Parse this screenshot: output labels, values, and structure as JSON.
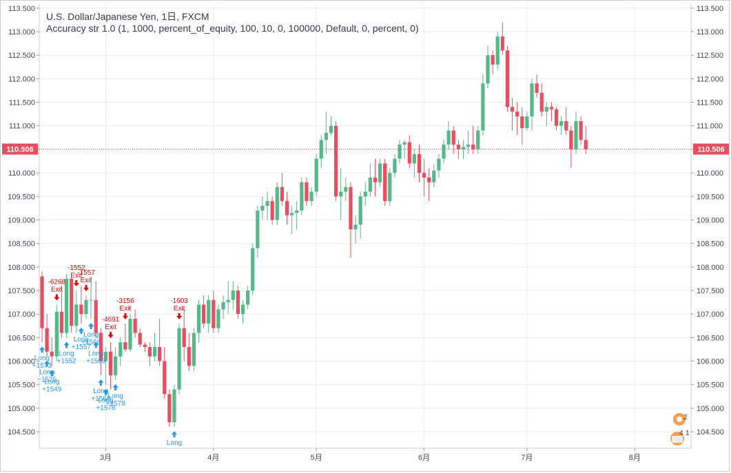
{
  "legend": {
    "title": "U.S. Dollar/Japanese Yen, 1日, FXCM",
    "study": "Accuracy str 1.0 (1, 1000, percent_of_equity, 100, 10, 0, 100000, Default, 0, percent, 0)"
  },
  "colors": {
    "up": "#53b987",
    "down": "#eb4d5c",
    "price_line": "#eb4d5c",
    "long_signal": "#2196f3",
    "exit_signal": "#f00000",
    "grid": "#e9ecf2"
  },
  "chart_data": {
    "type": "candlestick",
    "title": "U.S. Dollar/Japanese Yen, 1日, FXCM",
    "ylim": [
      104.15,
      113.6
    ],
    "yticks": [
      "113.500",
      "113.000",
      "112.500",
      "112.000",
      "111.500",
      "111.000",
      "110.500",
      "110.000",
      "109.500",
      "109.000",
      "108.500",
      "108.000",
      "107.500",
      "107.000",
      "106.500",
      "106.000",
      "105.500",
      "105.000",
      "104.500"
    ],
    "xticks": [
      {
        "label": "3月",
        "i": 13
      },
      {
        "label": "4月",
        "i": 35
      },
      {
        "label": "5月",
        "i": 56
      },
      {
        "label": "6月",
        "i": 78
      },
      {
        "label": "7月",
        "i": 99
      },
      {
        "label": "8月",
        "i": 121
      }
    ],
    "last_price": 110.506,
    "last_price_label": "110.506",
    "ohlc": [
      [
        107.8,
        107.9,
        106.4,
        106.7
      ],
      [
        106.7,
        107.0,
        106.1,
        106.2
      ],
      [
        106.2,
        106.5,
        105.9,
        106.1
      ],
      [
        106.1,
        107.2,
        106.0,
        107.05
      ],
      [
        107.05,
        107.6,
        106.5,
        106.6
      ],
      [
        106.6,
        107.85,
        106.5,
        107.75
      ],
      [
        107.75,
        107.8,
        106.6,
        106.75
      ],
      [
        106.75,
        107.5,
        106.6,
        107.2
      ],
      [
        107.2,
        107.6,
        106.8,
        107.0
      ],
      [
        107.0,
        107.4,
        106.9,
        107.3
      ],
      [
        107.3,
        107.8,
        106.9,
        107.3
      ],
      [
        107.3,
        107.7,
        106.5,
        106.6
      ],
      [
        106.6,
        106.7,
        105.7,
        106.0
      ],
      [
        106.0,
        106.3,
        105.5,
        106.2
      ],
      [
        106.2,
        106.4,
        105.4,
        105.7
      ],
      [
        105.7,
        106.3,
        105.6,
        106.1
      ],
      [
        106.1,
        106.5,
        105.9,
        106.4
      ],
      [
        106.4,
        106.8,
        106.2,
        106.25
      ],
      [
        106.25,
        107.0,
        106.2,
        106.9
      ],
      [
        106.9,
        107.1,
        106.5,
        106.6
      ],
      [
        106.6,
        106.7,
        106.3,
        106.35
      ],
      [
        106.35,
        106.4,
        106.2,
        106.3
      ],
      [
        106.3,
        106.4,
        105.9,
        106.1
      ],
      [
        106.1,
        106.6,
        106.0,
        106.3
      ],
      [
        106.3,
        106.9,
        105.9,
        106.0
      ],
      [
        106.0,
        106.3,
        105.2,
        105.3
      ],
      [
        105.3,
        105.4,
        104.6,
        104.7
      ],
      [
        104.7,
        105.5,
        104.6,
        105.4
      ],
      [
        105.4,
        106.8,
        105.3,
        106.7
      ],
      [
        106.7,
        107.1,
        106.0,
        106.3
      ],
      [
        106.3,
        106.6,
        105.8,
        105.9
      ],
      [
        105.9,
        106.7,
        105.8,
        106.6
      ],
      [
        106.6,
        107.3,
        106.4,
        107.2
      ],
      [
        107.2,
        107.4,
        106.7,
        106.8
      ],
      [
        106.8,
        107.4,
        106.6,
        107.3
      ],
      [
        107.3,
        107.5,
        106.6,
        106.7
      ],
      [
        106.7,
        107.2,
        106.6,
        107.1
      ],
      [
        107.1,
        107.4,
        106.9,
        107.25
      ],
      [
        107.25,
        107.7,
        107.0,
        107.3
      ],
      [
        107.3,
        107.7,
        107.1,
        107.5
      ],
      [
        107.5,
        107.6,
        106.9,
        107.0
      ],
      [
        107.0,
        107.3,
        106.8,
        107.2
      ],
      [
        107.2,
        107.6,
        107.1,
        107.5
      ],
      [
        107.5,
        108.5,
        107.4,
        108.4
      ],
      [
        108.4,
        109.3,
        108.2,
        109.2
      ],
      [
        109.2,
        109.5,
        109.0,
        109.3
      ],
      [
        109.3,
        109.6,
        109.0,
        109.4
      ],
      [
        109.4,
        109.5,
        108.9,
        109.0
      ],
      [
        109.0,
        109.8,
        108.9,
        109.7
      ],
      [
        109.7,
        110.0,
        109.3,
        109.4
      ],
      [
        109.4,
        109.6,
        108.9,
        109.1
      ],
      [
        109.1,
        109.3,
        108.7,
        109.15
      ],
      [
        109.15,
        109.4,
        108.8,
        109.2
      ],
      [
        109.2,
        109.9,
        109.1,
        109.8
      ],
      [
        109.8,
        109.9,
        109.3,
        109.4
      ],
      [
        109.4,
        109.7,
        109.3,
        109.6
      ],
      [
        109.6,
        110.4,
        109.5,
        110.3
      ],
      [
        110.3,
        110.8,
        110.1,
        110.7
      ],
      [
        110.7,
        111.3,
        110.4,
        110.85
      ],
      [
        110.85,
        111.2,
        110.8,
        111.0
      ],
      [
        111.0,
        111.1,
        109.4,
        109.5
      ],
      [
        109.5,
        110.1,
        109.0,
        109.6
      ],
      [
        109.6,
        109.9,
        109.4,
        109.7
      ],
      [
        109.7,
        109.8,
        108.2,
        108.8
      ],
      [
        108.8,
        109.1,
        108.5,
        108.9
      ],
      [
        108.9,
        109.6,
        108.6,
        109.5
      ],
      [
        109.5,
        109.8,
        109.3,
        109.6
      ],
      [
        109.6,
        110.2,
        109.5,
        109.9
      ],
      [
        109.9,
        110.3,
        109.5,
        109.8
      ],
      [
        109.8,
        110.3,
        109.7,
        110.2
      ],
      [
        110.2,
        110.3,
        109.3,
        109.4
      ],
      [
        109.4,
        110.1,
        109.3,
        110.0
      ],
      [
        110.0,
        110.4,
        109.9,
        110.3
      ],
      [
        110.3,
        110.7,
        110.2,
        110.6
      ],
      [
        110.6,
        110.7,
        110.3,
        110.65
      ],
      [
        110.65,
        110.8,
        110.1,
        110.2
      ],
      [
        110.2,
        110.5,
        109.9,
        110.4
      ],
      [
        110.4,
        110.6,
        109.8,
        110.0
      ],
      [
        110.0,
        110.3,
        109.5,
        109.9
      ],
      [
        109.9,
        110.1,
        109.4,
        109.8
      ],
      [
        109.8,
        110.2,
        109.7,
        110.05
      ],
      [
        110.05,
        110.4,
        109.9,
        110.3
      ],
      [
        110.3,
        110.7,
        110.2,
        110.6
      ],
      [
        110.6,
        111.1,
        110.5,
        110.9
      ],
      [
        110.9,
        111.0,
        110.4,
        110.6
      ],
      [
        110.6,
        110.7,
        110.3,
        110.5
      ],
      [
        110.5,
        110.7,
        110.3,
        110.55
      ],
      [
        110.55,
        110.9,
        110.4,
        110.6
      ],
      [
        110.6,
        111.0,
        110.4,
        110.5
      ],
      [
        110.5,
        111.0,
        110.4,
        110.9
      ],
      [
        110.9,
        112.1,
        110.8,
        111.9
      ],
      [
        111.9,
        112.7,
        111.8,
        112.5
      ],
      [
        112.5,
        112.6,
        112.1,
        112.3
      ],
      [
        112.3,
        113.0,
        112.2,
        112.9
      ],
      [
        112.9,
        113.2,
        112.5,
        112.6
      ],
      [
        112.6,
        112.7,
        111.3,
        111.4
      ],
      [
        111.4,
        111.6,
        110.9,
        111.3
      ],
      [
        111.3,
        111.5,
        110.8,
        111.2
      ],
      [
        111.2,
        111.4,
        110.6,
        110.95
      ],
      [
        110.95,
        111.3,
        110.9,
        111.2
      ],
      [
        111.2,
        112.0,
        110.9,
        111.9
      ],
      [
        111.9,
        112.1,
        111.6,
        111.7
      ],
      [
        111.7,
        111.9,
        111.2,
        111.3
      ],
      [
        111.3,
        111.5,
        111.0,
        111.4
      ],
      [
        111.4,
        111.5,
        111.1,
        111.35
      ],
      [
        111.35,
        111.4,
        110.9,
        111.0
      ],
      [
        111.0,
        111.2,
        110.8,
        111.1
      ],
      [
        111.1,
        111.4,
        110.8,
        110.9
      ],
      [
        110.9,
        111.0,
        110.1,
        110.5
      ],
      [
        110.5,
        111.3,
        110.4,
        111.1
      ],
      [
        111.1,
        111.2,
        110.6,
        110.7
      ],
      [
        110.7,
        111.0,
        110.4,
        110.5
      ]
    ],
    "signals": [
      {
        "i": 0,
        "type": "long",
        "lines": [
          "Long",
          "+1573"
        ]
      },
      {
        "i": 1,
        "type": "long",
        "lines": [
          "Long",
          "+1575"
        ]
      },
      {
        "i": 2,
        "type": "long",
        "lines": [
          "Long",
          "+1549"
        ]
      },
      {
        "i": 3,
        "type": "exit",
        "lines": [
          "-6268",
          "Exit"
        ]
      },
      {
        "i": 5,
        "type": "long",
        "lines": [
          "Long",
          "+1552"
        ]
      },
      {
        "i": 7,
        "type": "exit",
        "lines": [
          "-1552",
          "Exit"
        ]
      },
      {
        "i": 8,
        "type": "long",
        "lines": [
          "Long",
          "+1557"
        ]
      },
      {
        "i": 9,
        "type": "exit",
        "lines": [
          "-1557",
          "Exit"
        ]
      },
      {
        "i": 10,
        "type": "long",
        "lines": [
          "Long",
          "+1566"
        ]
      },
      {
        "i": 11,
        "type": "long",
        "lines": [
          "Long",
          "+1569"
        ]
      },
      {
        "i": 12,
        "type": "long",
        "lines": [
          "Long",
          "+1568"
        ]
      },
      {
        "i": 13,
        "type": "long",
        "lines": [
          "Long",
          "+1578"
        ]
      },
      {
        "i": 14,
        "type": "exit",
        "lines": [
          "-4691",
          "Exit"
        ]
      },
      {
        "i": 15,
        "type": "long",
        "lines": [
          "Long",
          "+1578"
        ]
      },
      {
        "i": 17,
        "type": "exit",
        "lines": [
          "-3156",
          "Exit"
        ]
      },
      {
        "i": 27,
        "type": "long",
        "lines": [
          "Long"
        ]
      },
      {
        "i": 28,
        "type": "exit",
        "lines": [
          "-1603",
          "Exit"
        ]
      }
    ]
  }
}
